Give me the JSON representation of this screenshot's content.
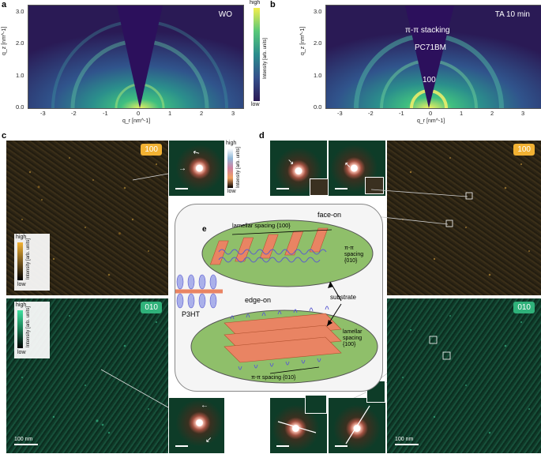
{
  "panels": {
    "a": {
      "letter": "a",
      "tag": "WO",
      "xticks": [
        "-3",
        "-2",
        "-1",
        "0",
        "1",
        "2",
        "3"
      ],
      "yticks": [
        "0.0",
        "1.0",
        "2.0",
        "3.0"
      ],
      "xlabel": "q_r [nm^-1]",
      "ylabel": "q_z [nm^-1]",
      "cbar_high": "high",
      "cbar_low": "low",
      "cbar_title": "Intensity [arb. units]"
    },
    "b": {
      "letter": "b",
      "tag": "TA 10 min",
      "xticks": [
        "-3",
        "-2",
        "-1",
        "0",
        "1",
        "2",
        "3"
      ],
      "yticks": [
        "0.0",
        "1.0",
        "2.0",
        "3.0"
      ],
      "xlabel": "q_r [nm^-1]",
      "ylabel": "q_z [nm^-1]",
      "ann_pi": "π-π  stacking",
      "ann_pcbm": "PC71BM",
      "ann_100": "100"
    },
    "c": {
      "letter": "c",
      "badge_top": "100",
      "badge_bottom": "010",
      "cbar_high_top": "high",
      "cbar_low_top": "low",
      "cbar_title_top": "Intensity [arb. units]",
      "cbar_high_bottom": "high",
      "cbar_low_bottom": "low",
      "cbar_title_bottom": "Intensity [arb. units]",
      "fft_cbar_high": "high",
      "fft_cbar_low": "low",
      "fft_cbar_title": "Intensity [arb. units]",
      "scale": "100 nm"
    },
    "d": {
      "letter": "d",
      "badge_top": "100",
      "badge_bottom": "010",
      "scale": "100 nm"
    },
    "e": {
      "letter": "e",
      "face_on": "face-on",
      "edge_on": "edge-on",
      "lamellar_top": "lamellar spacing {100}",
      "pipi_top_1": "π-π",
      "pipi_top_2": "spacing",
      "pipi_top_3": "{010}",
      "substrate": "substrate",
      "lamellar_bot_1": "lamellar",
      "lamellar_bot_2": "spacing",
      "lamellar_bot_3": "{100}",
      "pipi_bot": "π-π spacing {010}",
      "p3ht": "P3HT"
    }
  },
  "colors": {
    "giwaxs_bg": "#2a1a55",
    "gold": "#f2b233",
    "green": "#2fb27a",
    "substrate": "#8fbf6a",
    "lamella": "#e98463",
    "chain": "#5a5ad0"
  }
}
